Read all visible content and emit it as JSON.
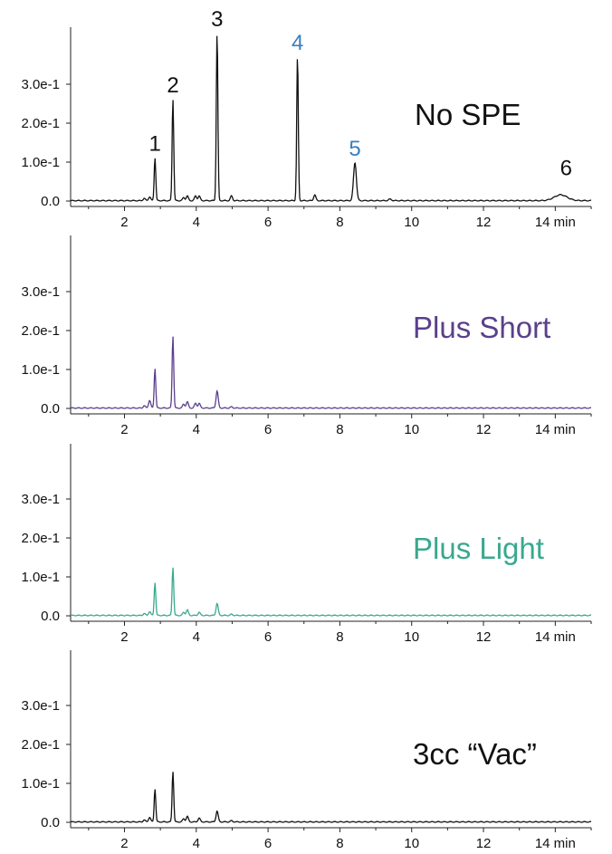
{
  "chart_data": [
    {
      "type": "line",
      "label": "No SPE",
      "color": "#111111",
      "x_unit": "min",
      "xlim": [
        0.5,
        15
      ],
      "ylim": [
        -0.02,
        0.43
      ],
      "xticks": [
        2,
        4,
        6,
        8,
        10,
        12,
        14
      ],
      "yticks": [
        0.0,
        0.1,
        0.2,
        0.3
      ],
      "ytick_labels": [
        "0.0",
        "1.0e-1",
        "2.0e-1",
        "3.0e-1"
      ],
      "peaks": [
        {
          "x": 2.55,
          "y": 0.006
        },
        {
          "x": 2.7,
          "y": 0.01
        },
        {
          "x": 2.85,
          "y": 0.11,
          "label": "1",
          "label_color": "#111111"
        },
        {
          "x": 3.35,
          "y": 0.26,
          "label": "2",
          "label_color": "#111111"
        },
        {
          "x": 3.65,
          "y": 0.008
        },
        {
          "x": 3.75,
          "y": 0.012
        },
        {
          "x": 3.98,
          "y": 0.012
        },
        {
          "x": 4.08,
          "y": 0.012
        },
        {
          "x": 4.58,
          "y": 0.43,
          "label": "3",
          "label_color": "#111111"
        },
        {
          "x": 4.98,
          "y": 0.012
        },
        {
          "x": 6.82,
          "y": 0.37,
          "label": "4",
          "label_color": "#3b7fbf"
        },
        {
          "x": 7.3,
          "y": 0.015
        },
        {
          "x": 8.42,
          "y": 0.098,
          "label": "5",
          "label_color": "#3b7fbf"
        },
        {
          "x": 9.4,
          "y": 0.004
        },
        {
          "x": 14.15,
          "y": 0.015,
          "label": "6",
          "label_color": "#111111"
        }
      ]
    },
    {
      "type": "line",
      "label": "Plus Short",
      "color": "#5b3f8c",
      "x_unit": "min",
      "xlim": [
        0.5,
        15
      ],
      "ylim": [
        -0.02,
        0.43
      ],
      "xticks": [
        2,
        4,
        6,
        8,
        10,
        12,
        14
      ],
      "yticks": [
        0.0,
        0.1,
        0.2,
        0.3
      ],
      "ytick_labels": [
        "0.0",
        "1.0e-1",
        "2.0e-1",
        "3.0e-1"
      ],
      "peaks": [
        {
          "x": 2.55,
          "y": 0.006
        },
        {
          "x": 2.7,
          "y": 0.02
        },
        {
          "x": 2.85,
          "y": 0.102
        },
        {
          "x": 3.35,
          "y": 0.185
        },
        {
          "x": 3.65,
          "y": 0.01
        },
        {
          "x": 3.75,
          "y": 0.016
        },
        {
          "x": 3.98,
          "y": 0.012
        },
        {
          "x": 4.08,
          "y": 0.012
        },
        {
          "x": 4.58,
          "y": 0.044
        },
        {
          "x": 4.98,
          "y": 0.003
        }
      ]
    },
    {
      "type": "line",
      "label": "Plus Light",
      "color": "#3aa88f",
      "x_unit": "min",
      "xlim": [
        0.5,
        15
      ],
      "ylim": [
        -0.02,
        0.43
      ],
      "xticks": [
        2,
        4,
        6,
        8,
        10,
        12,
        14
      ],
      "yticks": [
        0.0,
        0.1,
        0.2,
        0.3
      ],
      "ytick_labels": [
        "0.0",
        "1.0e-1",
        "2.0e-1",
        "3.0e-1"
      ],
      "peaks": [
        {
          "x": 2.55,
          "y": 0.005
        },
        {
          "x": 2.7,
          "y": 0.01
        },
        {
          "x": 2.85,
          "y": 0.085
        },
        {
          "x": 3.35,
          "y": 0.124
        },
        {
          "x": 3.65,
          "y": 0.008
        },
        {
          "x": 3.75,
          "y": 0.014
        },
        {
          "x": 4.08,
          "y": 0.008
        },
        {
          "x": 4.58,
          "y": 0.031
        },
        {
          "x": 4.98,
          "y": 0.003
        }
      ]
    },
    {
      "type": "line",
      "label": "3cc “Vac”",
      "color": "#111111",
      "x_unit": "min",
      "xlim": [
        0.5,
        15
      ],
      "ylim": [
        -0.02,
        0.43
      ],
      "xticks": [
        2,
        4,
        6,
        8,
        10,
        12,
        14
      ],
      "yticks": [
        0.0,
        0.1,
        0.2,
        0.3
      ],
      "ytick_labels": [
        "0.0",
        "1.0e-1",
        "2.0e-1",
        "3.0e-1"
      ],
      "peaks": [
        {
          "x": 2.55,
          "y": 0.005
        },
        {
          "x": 2.7,
          "y": 0.012
        },
        {
          "x": 2.85,
          "y": 0.085
        },
        {
          "x": 3.35,
          "y": 0.13
        },
        {
          "x": 3.65,
          "y": 0.008
        },
        {
          "x": 3.75,
          "y": 0.014
        },
        {
          "x": 4.08,
          "y": 0.01
        },
        {
          "x": 4.58,
          "y": 0.028
        },
        {
          "x": 4.98,
          "y": 0.003
        }
      ]
    }
  ]
}
